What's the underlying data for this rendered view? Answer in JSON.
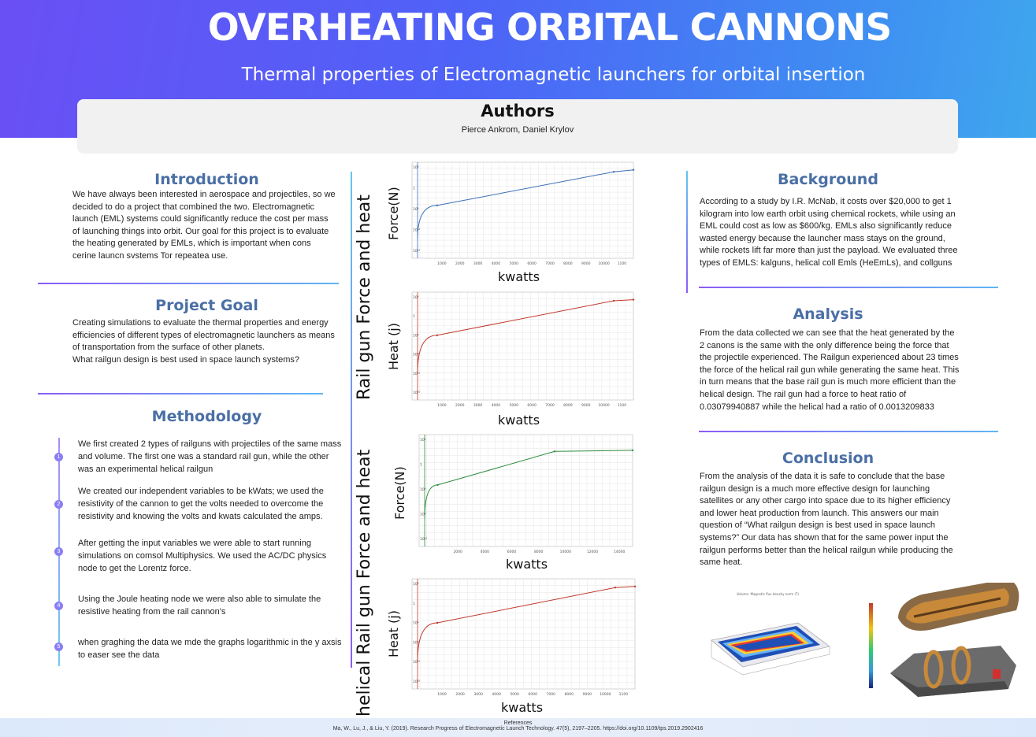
{
  "header": {
    "title": "OVERHEATING ORBITAL CANNONS",
    "subtitle": "Thermal properties of Electromagnetic launchers for orbital insertion"
  },
  "authors": {
    "heading": "Authors",
    "names": "Pierce Ankrom, Daniel Krylov"
  },
  "introduction": {
    "heading": "Introduction",
    "text": "We have always been interested in aerospace and projectiles, so we decided to do a project that combined the two. Electromagnetic launch (EML) systems could significantly reduce the cost per mass of launching things into orbit. Our goal for this project is to evaluate the heating generated by EMLs, which is important when cons cerine launcn svstems Tor repeatea use."
  },
  "project_goal": {
    "heading": "Project Goal",
    "text": "Creating simulations to evaluate the thermal properties and energy efficiencies of different types of electromagnetic launchers as means of transportation from the surface of other planets.",
    "question": "What railgun design is best used in space launch systems?"
  },
  "methodology": {
    "heading": "Methodology",
    "steps": [
      {
        "n": "1",
        "text": "We first created 2 types of railguns with projectiles of the same mass and volume. The first one was a standard rail gun, while the other was an experimental helical railgun"
      },
      {
        "n": "2",
        "text": "We created our independent variables to be kWats; we used the resistivity of the cannon to get the volts needed to overcome the resistivity and knowing the volts and kwats calculated the amps."
      },
      {
        "n": "3",
        "text": "After getting the input variables we were able to start running simulations on comsol Multiphysics. We used the AC/DC physics node to get the Lorentz force."
      },
      {
        "n": "4",
        "text": "Using the Joule heating node we were also able to simulate the resistive heating from the rail cannon's"
      },
      {
        "n": "5",
        "text": "when graghing the data we mde the graphs logarithmic in the y axsis to easer see the data"
      }
    ]
  },
  "charts_section": {
    "label_top": "Rail gun Force and heat",
    "label_bottom": "helical Rail gun Force and heat"
  },
  "chart_data": [
    {
      "type": "line",
      "title": "",
      "ylabel": "Force(N)",
      "xlabel": "kwatts",
      "color": "#3b6fb6",
      "x": [
        0,
        1000,
        10000,
        11000
      ],
      "y": [
        0.2,
        0.55,
        0.9,
        0.92
      ],
      "yscale": "log",
      "xticks": [
        "1000",
        "2000",
        "3000",
        "4000",
        "5000",
        "6000",
        "7000",
        "8000",
        "9000",
        "10000",
        "1100"
      ],
      "yticks": [
        "10⁴",
        "1",
        "10⁴",
        "10¹²",
        "10¹⁶"
      ]
    },
    {
      "type": "line",
      "title": "",
      "ylabel": "Heat (j)",
      "xlabel": "kwatts",
      "color": "#c0392b",
      "x": [
        0,
        1000,
        10000,
        11000
      ],
      "y": [
        0.25,
        0.6,
        0.92,
        0.93
      ],
      "yscale": "log",
      "xticks": [
        "1000",
        "2000",
        "3000",
        "4000",
        "5000",
        "6000",
        "7000",
        "8000",
        "9000",
        "10000",
        "1100"
      ],
      "yticks": [
        "10⁴",
        "1",
        "10⁴",
        "10⁸",
        "10¹²",
        "10¹⁶"
      ]
    },
    {
      "type": "line",
      "title": "",
      "ylabel": "Force(N)",
      "xlabel": "kwatts",
      "color": "#2e8b3d",
      "x": [
        0,
        1000,
        10000,
        16000
      ],
      "y": [
        0.25,
        0.55,
        0.85,
        0.86
      ],
      "yscale": "log",
      "xticks": [
        "2000",
        "4000",
        "6000",
        "8000",
        "10000",
        "12000",
        "14000"
      ],
      "yticks": [
        "10⁴",
        "1",
        "10⁴",
        "10⁸",
        "10¹²"
      ]
    },
    {
      "type": "line",
      "title": "",
      "ylabel": "Heat (j)",
      "xlabel": "kwatts",
      "color": "#c0392b",
      "x": [
        0,
        1000,
        10000,
        11000
      ],
      "y": [
        0.25,
        0.6,
        0.92,
        0.93
      ],
      "yscale": "log",
      "xticks": [
        "1000",
        "2000",
        "3000",
        "4000",
        "5000",
        "6000",
        "7000",
        "8000",
        "9000",
        "10000",
        "1100"
      ],
      "yticks": [
        "10⁴",
        "1",
        "10⁴",
        "10⁸",
        "10¹²",
        "10¹⁶"
      ]
    }
  ],
  "background": {
    "heading": "Background",
    "text": "According to a study by I.R. McNab, it costs over $20,000 to get 1 kilogram into low earth orbit using chemical rockets, while using an EML could cost as low as $600/kg. EMLs also significantly reduce wasted energy because the launcher mass stays on the ground, while rockets lift far more than just the payload. We evaluated three types of EMLS: kalguns, helical coll Emls (HeEmLs), and collguns"
  },
  "analysis": {
    "heading": "Analysis",
    "text": "From the data collected we can see that the heat generated by the 2 canons is the same with the only difference being the force that the projectile experienced. The Railgun experienced about 23 times the force of the helical rail gun while generating the same heat. This in turn means that the base rail gun is much more efficient than the helical design. The rail gun had a force to heat ratio of 0.03079940887 while the helical had a ratio of 0.0013209833"
  },
  "conclusion": {
    "heading": "Conclusion",
    "text": "From the analysis of the data it is safe to conclude that the base railgun design is a much more effective design for launching satellites or any other cargo into space due to its higher efficiency and lower heat production from launch. This answers our main question of “What railgun design is best used in space launch systems?” Our data has shown that for the same power input the railgun performs better than the helical railgun while producing the same heat."
  },
  "figures": {
    "sim_caption": "Volume: Magnetic flux density norm (T)"
  },
  "footer": {
    "heading": "References",
    "citation": "Ma, W., Lu, J., & Liu, Y. (2019). Research Progress of Electromagnetic Launch Technology. 47(5), 2197–2205. https://doi.org/10.1109/tps.2019.2902416"
  },
  "colors": {
    "accent": "#4a6fa5",
    "gradient_start": "#6a4ff5",
    "gradient_end": "#3fa7ee"
  }
}
